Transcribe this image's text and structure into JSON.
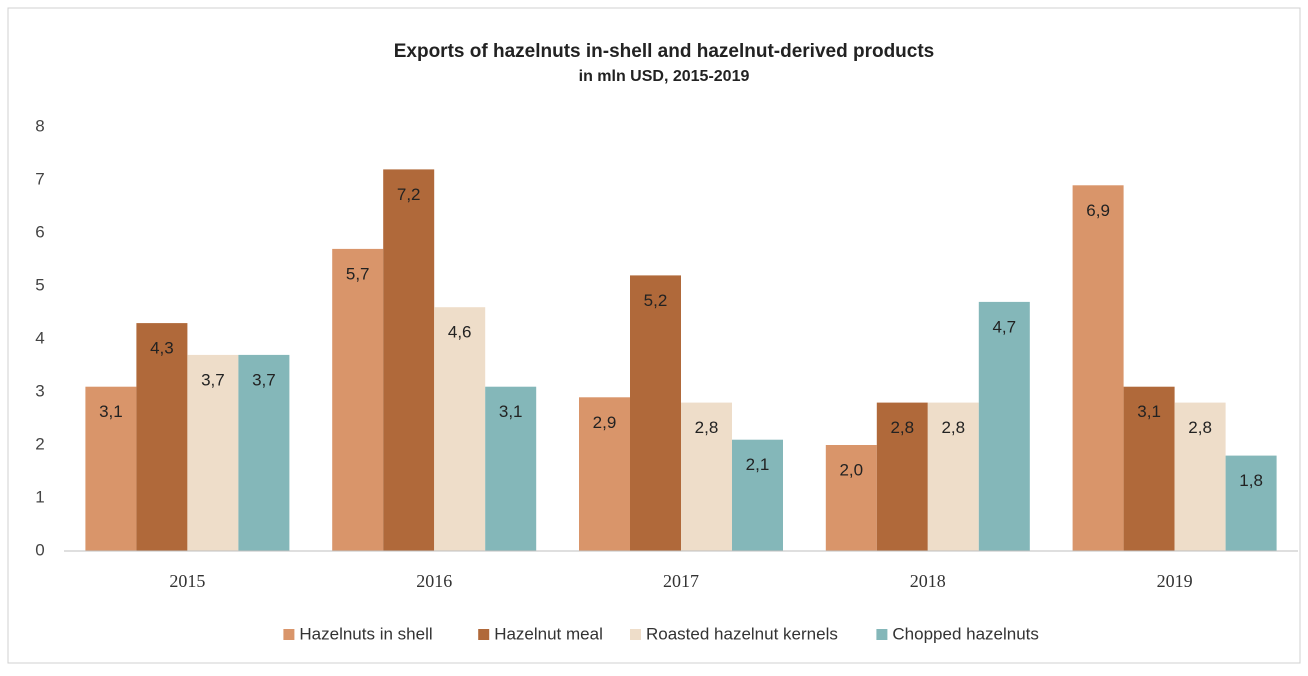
{
  "chart_data": {
    "type": "bar",
    "title": "Exports of hazelnuts in-shell and hazelnut-derived products",
    "subtitle": "in mln USD, 2015-2019",
    "categories": [
      "2015",
      "2016",
      "2017",
      "2018",
      "2019"
    ],
    "series": [
      {
        "name": "Hazelnuts in shell",
        "color": "#d9956a",
        "values": [
          3.1,
          5.7,
          2.9,
          2.0,
          6.9
        ],
        "value_labels": [
          "3,1",
          "5,7",
          "2,9",
          "2,0",
          "6,9"
        ]
      },
      {
        "name": "Hazelnut meal",
        "color": "#b0693a",
        "values": [
          4.3,
          7.2,
          5.2,
          2.8,
          3.1
        ],
        "value_labels": [
          "4,3",
          "7,2",
          "5,2",
          "2,8",
          "3,1"
        ]
      },
      {
        "name": "Roasted hazelnut kernels",
        "color": "#eeddc9",
        "values": [
          3.7,
          4.6,
          2.8,
          2.8,
          2.8
        ],
        "value_labels": [
          "3,7",
          "4,6",
          "2,8",
          "2,8",
          "2,8"
        ]
      },
      {
        "name": "Chopped hazelnuts",
        "color": "#84b7b9",
        "values": [
          3.7,
          3.1,
          2.1,
          4.7,
          1.8
        ],
        "value_labels": [
          "3,7",
          "3,1",
          "2,1",
          "4,7",
          "1,8"
        ]
      }
    ],
    "ylim": [
      0,
      8
    ],
    "yticks": [
      0,
      1,
      2,
      3,
      4,
      5,
      6,
      7,
      8
    ],
    "grid": false,
    "legend": "bottom"
  }
}
